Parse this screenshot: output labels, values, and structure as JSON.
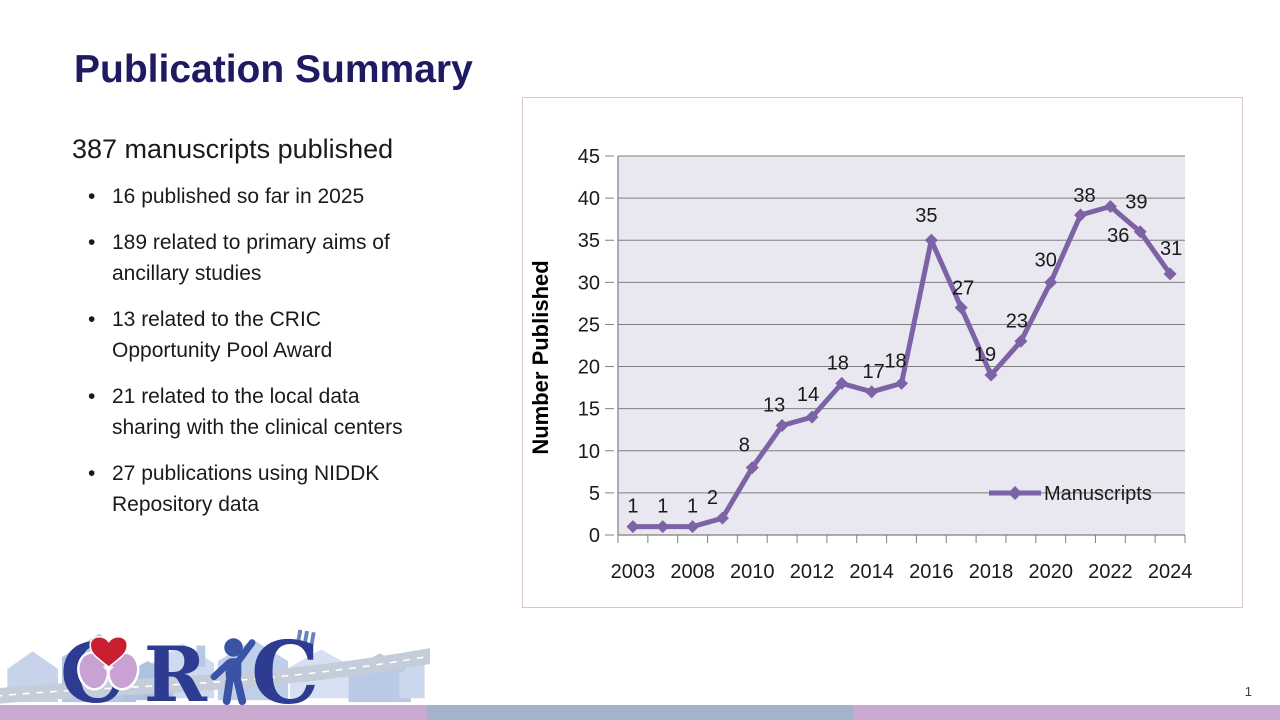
{
  "title": "Publication Summary",
  "subtitle": "387 manuscripts published",
  "bullet_char": "•",
  "bullets": [
    [
      "16 published so far in 2025"
    ],
    [
      "189 related to primary aims of",
      "ancillary studies"
    ],
    [
      "13 related to the CRIC",
      "Opportunity Pool Award"
    ],
    [
      "21 related to the local data",
      "sharing with the clinical centers"
    ],
    [
      "27 publications using NIDDK",
      "Repository data"
    ]
  ],
  "page_number": "1",
  "logo": {
    "letters": [
      "C",
      "R",
      "C"
    ]
  },
  "colors": {
    "title": "#1E1B63",
    "accent_purple": "#7D63A5",
    "plot_bg": "#E9E7EF",
    "gridline": "#7F7F7F",
    "chart_border": "#DCC3DC",
    "footer_plum": "#C9A9CF",
    "footer_bluegray": "#A4B3C9",
    "chart_text": "#1A1A1A"
  },
  "chart_data": {
    "type": "line",
    "title": "",
    "xlabel": "",
    "ylabel": "Number Published",
    "ylim": [
      0,
      45
    ],
    "yticks": [
      0,
      5,
      10,
      15,
      20,
      25,
      30,
      35,
      40,
      45
    ],
    "x_tick_labels": [
      "2003",
      "2008",
      "2010",
      "2012",
      "2014",
      "2016",
      "2018",
      "2020",
      "2022",
      "2024"
    ],
    "x_tick_indices": [
      0,
      2,
      4,
      6,
      8,
      10,
      12,
      14,
      16,
      18
    ],
    "grid": true,
    "data_labels": true,
    "legend_position": "inside-lower-right",
    "series": [
      {
        "name": "Manuscripts",
        "marker": "diamond",
        "color": "#7D63A5",
        "values": [
          1,
          1,
          1,
          2,
          8,
          13,
          14,
          18,
          17,
          18,
          35,
          27,
          19,
          23,
          30,
          38,
          39,
          36,
          31
        ]
      }
    ]
  }
}
